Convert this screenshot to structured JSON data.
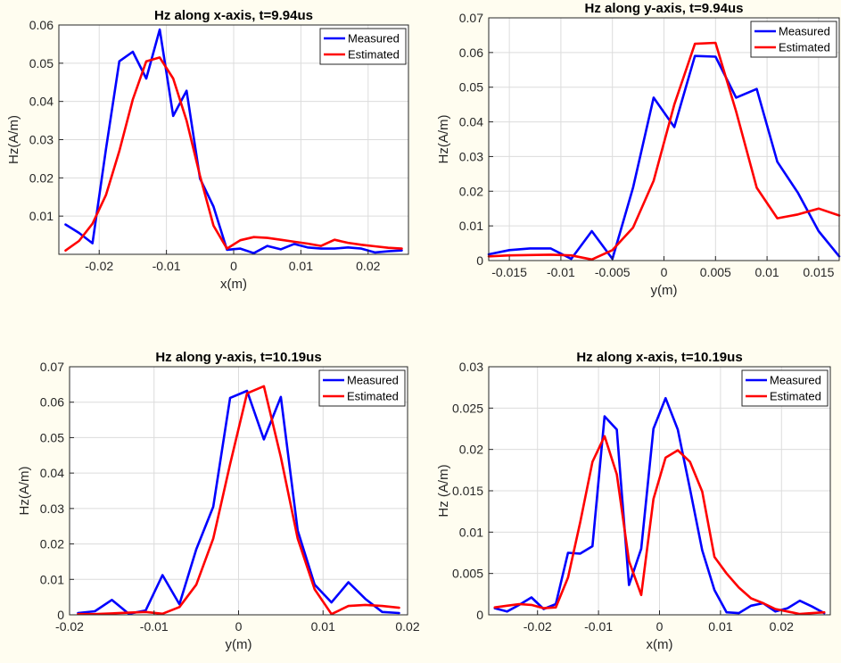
{
  "chart_data": [
    {
      "type": "line",
      "title": "Hz along x-axis, t=9.94us",
      "xlabel": "x(m)",
      "ylabel": "Hz(A/m)",
      "xlim": [
        -0.026,
        0.026
      ],
      "ylim": [
        0,
        0.06
      ],
      "xticks": [
        -0.02,
        -0.01,
        0,
        0.01,
        0.02
      ],
      "xtick_labels": [
        "-0.02",
        "-0.01",
        "0",
        "0.01",
        "0.02"
      ],
      "yticks": [
        0.01,
        0.02,
        0.03,
        0.04,
        0.05,
        0.06
      ],
      "ytick_labels": [
        "0.01",
        "0.02",
        "0.03",
        "0.04",
        "0.05",
        "0.06"
      ],
      "grid": true,
      "legend_position": "top-right",
      "series": [
        {
          "name": "Measured",
          "color": "#0000ff",
          "x": [
            -0.025,
            -0.023,
            -0.021,
            -0.019,
            -0.017,
            -0.015,
            -0.013,
            -0.011,
            -0.009,
            -0.007,
            -0.005,
            -0.003,
            -0.001,
            0.001,
            0.003,
            0.005,
            0.007,
            0.009,
            0.011,
            0.013,
            0.015,
            0.017,
            0.019,
            0.021,
            0.023,
            0.025
          ],
          "y": [
            0.0078,
            0.0056,
            0.0029,
            0.0275,
            0.0505,
            0.053,
            0.046,
            0.0588,
            0.0362,
            0.0428,
            0.0198,
            0.0125,
            0.0012,
            0.0015,
            0.0003,
            0.0022,
            0.0013,
            0.0027,
            0.0018,
            0.0015,
            0.0015,
            0.0018,
            0.0015,
            0.0005,
            0.0008,
            0.001
          ]
        },
        {
          "name": "Estimated",
          "color": "#ff0000",
          "x": [
            -0.025,
            -0.023,
            -0.021,
            -0.019,
            -0.017,
            -0.015,
            -0.013,
            -0.011,
            -0.009,
            -0.007,
            -0.005,
            -0.003,
            -0.001,
            0.001,
            0.003,
            0.005,
            0.007,
            0.009,
            0.011,
            0.013,
            0.015,
            0.017,
            0.019,
            0.021,
            0.023,
            0.025
          ],
          "y": [
            0.001,
            0.0035,
            0.008,
            0.0155,
            0.027,
            0.0405,
            0.0505,
            0.0515,
            0.046,
            0.035,
            0.0205,
            0.0075,
            0.0015,
            0.0037,
            0.0045,
            0.0043,
            0.0038,
            0.0033,
            0.0028,
            0.0022,
            0.0038,
            0.003,
            0.0025,
            0.0021,
            0.0017,
            0.0015
          ]
        }
      ]
    },
    {
      "type": "line",
      "title": "Hz along y-axis, t=9.94us",
      "xlabel": "y(m)",
      "ylabel": "Hz(A/m)",
      "xlim": [
        -0.017,
        0.017
      ],
      "ylim": [
        0,
        0.07
      ],
      "xticks": [
        -0.015,
        -0.01,
        -0.005,
        0,
        0.005,
        0.01,
        0.015
      ],
      "xtick_labels": [
        "-0.015",
        "-0.01",
        "-0.005",
        "0",
        "0.005",
        "0.01",
        "0.015"
      ],
      "yticks": [
        0,
        0.01,
        0.02,
        0.03,
        0.04,
        0.05,
        0.06,
        0.07
      ],
      "ytick_labels": [
        "0",
        "0.01",
        "0.02",
        "0.03",
        "0.04",
        "0.05",
        "0.06",
        "0.07"
      ],
      "grid": true,
      "legend_position": "top-right",
      "series": [
        {
          "name": "Measured",
          "color": "#0000ff",
          "x": [
            -0.017,
            -0.015,
            -0.013,
            -0.011,
            -0.009,
            -0.007,
            -0.005,
            -0.003,
            -0.001,
            0.001,
            0.003,
            0.005,
            0.007,
            0.009,
            0.011,
            0.013,
            0.015,
            0.017
          ],
          "y": [
            0.0018,
            0.003,
            0.0035,
            0.0035,
            0.0005,
            0.0085,
            0.0005,
            0.021,
            0.047,
            0.0385,
            0.059,
            0.0588,
            0.047,
            0.0495,
            0.0285,
            0.0195,
            0.0085,
            0.0012
          ]
        },
        {
          "name": "Estimated",
          "color": "#ff0000",
          "x": [
            -0.017,
            -0.015,
            -0.013,
            -0.011,
            -0.009,
            -0.007,
            -0.005,
            -0.003,
            -0.001,
            0.001,
            0.003,
            0.005,
            0.007,
            0.009,
            0.011,
            0.013,
            0.015,
            0.017
          ],
          "y": [
            0.0012,
            0.0015,
            0.0016,
            0.0017,
            0.0015,
            0.0003,
            0.003,
            0.0095,
            0.023,
            0.045,
            0.0625,
            0.0628,
            0.043,
            0.021,
            0.0122,
            0.0133,
            0.015,
            0.013
          ]
        }
      ]
    },
    {
      "type": "line",
      "title": "Hz along y-axis, t=10.19us",
      "xlabel": "y(m)",
      "ylabel": "Hz(A/m)",
      "xlim": [
        -0.02,
        0.02
      ],
      "ylim": [
        0,
        0.07
      ],
      "xticks": [
        -0.02,
        -0.01,
        0,
        0.01,
        0.02
      ],
      "xtick_labels": [
        "-0.02",
        "-0.01",
        "0",
        "0.01",
        "0.02"
      ],
      "yticks": [
        0,
        0.01,
        0.02,
        0.03,
        0.04,
        0.05,
        0.06,
        0.07
      ],
      "ytick_labels": [
        "0",
        "0.01",
        "0.02",
        "0.03",
        "0.04",
        "0.05",
        "0.06",
        "0.07"
      ],
      "grid": true,
      "legend_position": "top-right",
      "series": [
        {
          "name": "Measured",
          "color": "#0000ff",
          "x": [
            -0.019,
            -0.017,
            -0.015,
            -0.013,
            -0.011,
            -0.009,
            -0.007,
            -0.005,
            -0.003,
            -0.001,
            0.001,
            0.003,
            0.005,
            0.007,
            0.009,
            0.011,
            0.013,
            0.015,
            0.017,
            0.019
          ],
          "y": [
            0.0005,
            0.001,
            0.0042,
            0.0003,
            0.0012,
            0.0112,
            0.003,
            0.0185,
            0.0305,
            0.0612,
            0.0632,
            0.0495,
            0.0615,
            0.0238,
            0.0085,
            0.0035,
            0.0092,
            0.0045,
            0.0008,
            0.0005
          ]
        },
        {
          "name": "Estimated",
          "color": "#ff0000",
          "x": [
            -0.019,
            -0.017,
            -0.015,
            -0.013,
            -0.011,
            -0.009,
            -0.007,
            -0.005,
            -0.003,
            -0.001,
            0.001,
            0.003,
            0.005,
            0.007,
            0.009,
            0.011,
            0.013,
            0.015,
            0.017,
            0.019
          ],
          "y": [
            0.0002,
            0.0002,
            0.0004,
            0.0006,
            0.0008,
            0.0003,
            0.0022,
            0.0085,
            0.0215,
            0.0425,
            0.0625,
            0.0645,
            0.0445,
            0.0215,
            0.0072,
            0.0002,
            0.0025,
            0.0028,
            0.0025,
            0.002
          ]
        }
      ]
    },
    {
      "type": "line",
      "title": "Hz along x-axis, t=10.19us",
      "xlabel": "x(m)",
      "ylabel": "Hz (A/m)",
      "xlim": [
        -0.028,
        0.028
      ],
      "ylim": [
        0,
        0.03
      ],
      "xticks": [
        -0.02,
        -0.01,
        0,
        0.01,
        0.02
      ],
      "xtick_labels": [
        "-0.02",
        "-0.01",
        "0",
        "0.01",
        "0.02"
      ],
      "yticks": [
        0,
        0.005,
        0.01,
        0.015,
        0.02,
        0.025,
        0.03
      ],
      "ytick_labels": [
        "0",
        "0.005",
        "0.01",
        "0.015",
        "0.02",
        "0.025",
        "0.03"
      ],
      "grid": true,
      "legend_position": "top-right",
      "series": [
        {
          "name": "Measured",
          "color": "#0000ff",
          "x": [
            -0.027,
            -0.025,
            -0.023,
            -0.021,
            -0.019,
            -0.017,
            -0.015,
            -0.013,
            -0.011,
            -0.009,
            -0.007,
            -0.005,
            -0.003,
            -0.001,
            0.001,
            0.003,
            0.005,
            0.007,
            0.009,
            0.011,
            0.013,
            0.015,
            0.017,
            0.019,
            0.021,
            0.023,
            0.025,
            0.027
          ],
          "y": [
            0.0008,
            0.0004,
            0.0012,
            0.0021,
            0.0007,
            0.0013,
            0.0075,
            0.0074,
            0.0083,
            0.024,
            0.0224,
            0.0036,
            0.008,
            0.0225,
            0.0262,
            0.0224,
            0.0152,
            0.0078,
            0.003,
            0.0003,
            0.0002,
            0.0011,
            0.0014,
            0.0004,
            0.0008,
            0.0017,
            0.001,
            0.0002
          ]
        },
        {
          "name": "Estimated",
          "color": "#ff0000",
          "x": [
            -0.027,
            -0.025,
            -0.023,
            -0.021,
            -0.019,
            -0.017,
            -0.015,
            -0.013,
            -0.011,
            -0.009,
            -0.007,
            -0.005,
            -0.003,
            -0.001,
            0.001,
            0.003,
            0.005,
            0.007,
            0.009,
            0.011,
            0.013,
            0.015,
            0.017,
            0.019,
            0.021,
            0.023,
            0.025,
            0.027
          ],
          "y": [
            0.0009,
            0.0011,
            0.0013,
            0.0012,
            0.0008,
            0.0009,
            0.0045,
            0.0112,
            0.0185,
            0.0216,
            0.017,
            0.0065,
            0.0024,
            0.014,
            0.019,
            0.0199,
            0.0185,
            0.0149,
            0.007,
            0.005,
            0.0033,
            0.002,
            0.0014,
            0.0007,
            0.0004,
            0.0001,
            0.0002,
            0.0003
          ]
        }
      ]
    }
  ]
}
